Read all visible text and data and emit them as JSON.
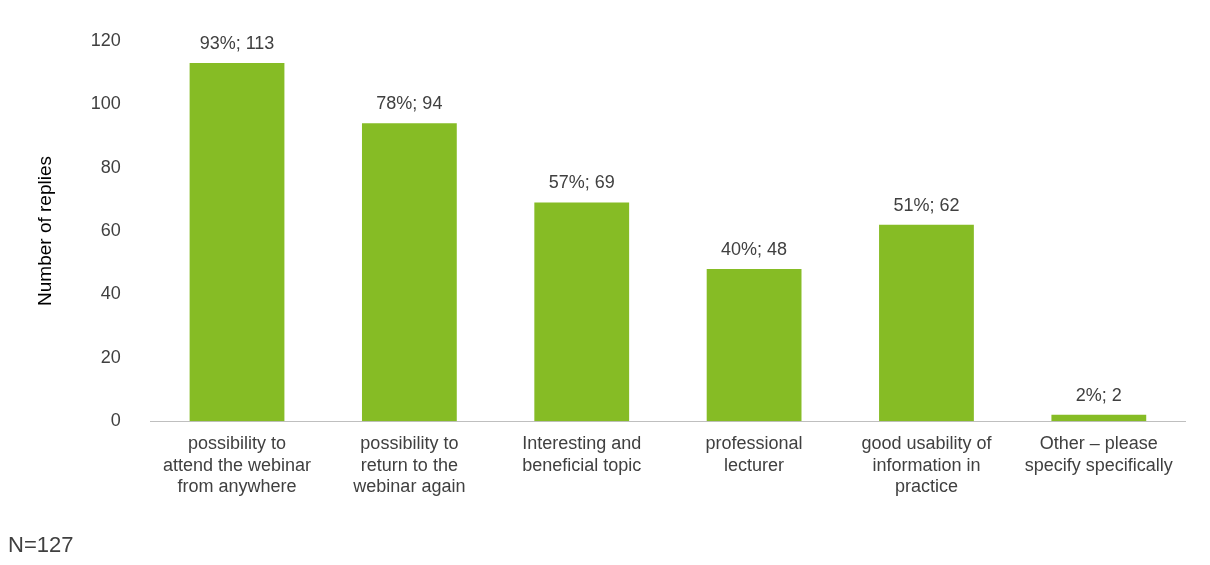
{
  "chart_data": {
    "type": "bar",
    "ylabel": "Number of replies",
    "categories": [
      "possibility to attend the webinar from anywhere",
      "possibility to return to the webinar again",
      "Interesting and beneficial topic",
      "professional lecturer",
      "good usability of information in practice",
      "Other – please specify specifically"
    ],
    "values": [
      113,
      94,
      69,
      48,
      62,
      2
    ],
    "value_labels": [
      "93%; 113",
      "78%; 94",
      "57%; 69",
      "40%; 48",
      "51%; 62",
      "2%; 2"
    ],
    "color": "#86bc25",
    "ylim": [
      0,
      120
    ],
    "yticks": [
      0,
      20,
      40,
      60,
      80,
      100,
      120
    ],
    "grid": false,
    "legend": false,
    "annotations": [
      "N=127"
    ]
  }
}
